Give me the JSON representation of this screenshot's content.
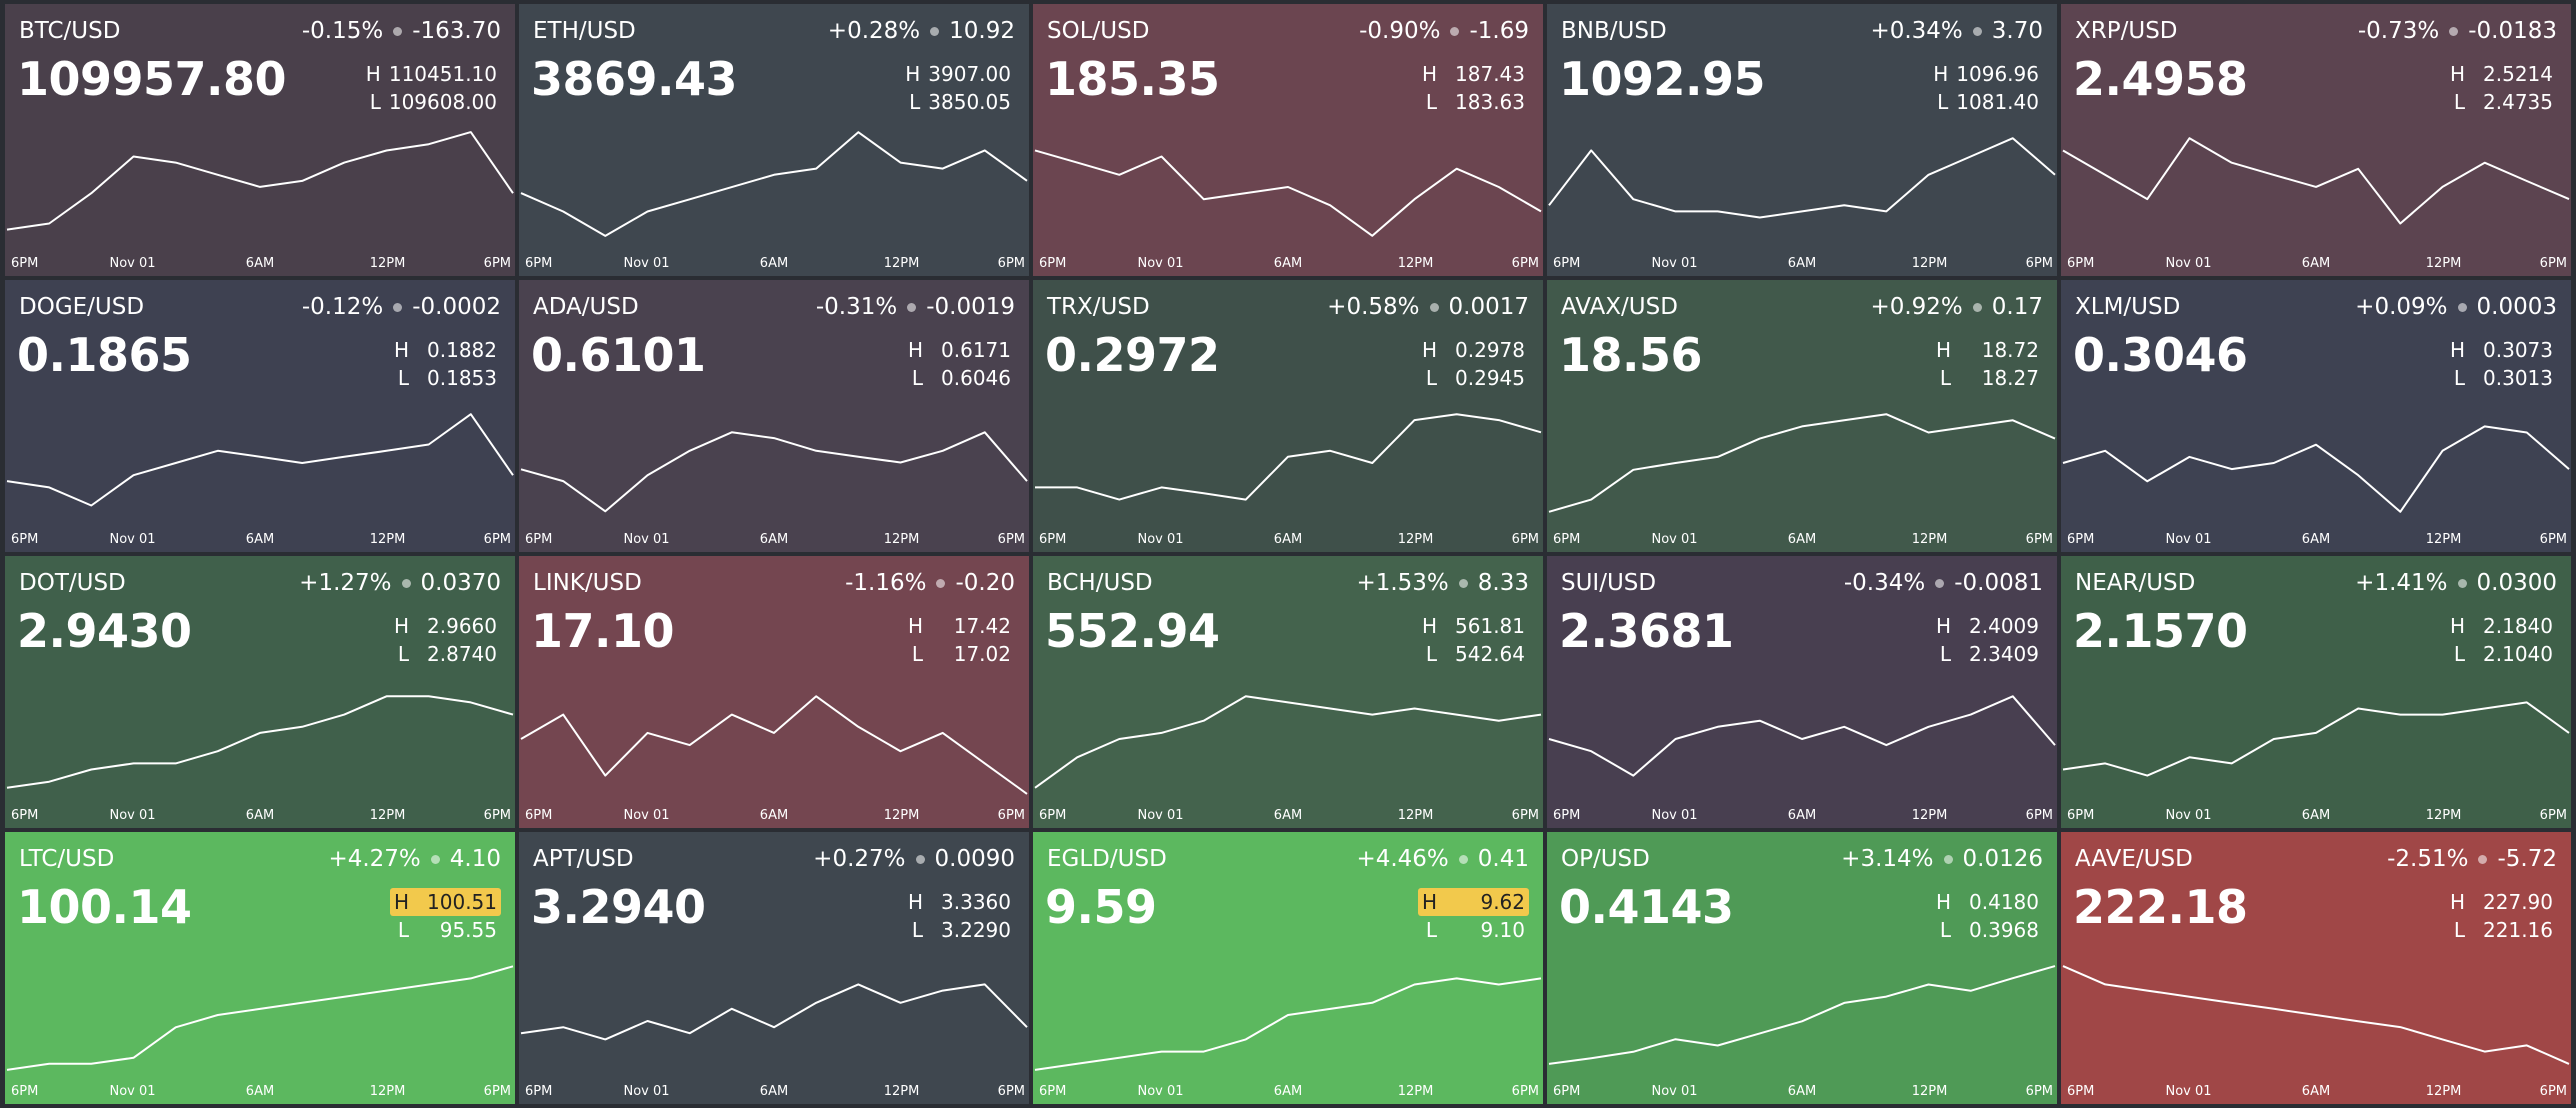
{
  "time_labels": [
    "6PM",
    "Nov 01",
    "6AM",
    "12PM",
    "6PM"
  ],
  "high_label": "H",
  "low_label": "L",
  "tiles": [
    {
      "pair": "BTC/USD",
      "change_pct": "-0.15%",
      "change": "-163.70",
      "price": "109957.80",
      "high": "110451.10",
      "low": "109608.00",
      "background": "#4a404b",
      "high_highlight": false,
      "sparkline": [
        109735,
        109777,
        109987,
        110240,
        110198,
        110114,
        110030,
        110072,
        110198,
        110282,
        110325,
        110409,
        109987
      ]
    },
    {
      "pair": "ETH/USD",
      "change_pct": "+0.28%",
      "change": "10.92",
      "price": "3869.43",
      "high": "3907.00",
      "low": "3850.05",
      "background": "#3f474f",
      "high_highlight": false,
      "sparkline": [
        3875.7,
        3867.1,
        3855.7,
        3867.1,
        3872.8,
        3878.5,
        3884.2,
        3887.1,
        3904.1,
        3889.9,
        3887.1,
        3895.6,
        3881.4
      ]
    },
    {
      "pair": "SOL/USD",
      "change_pct": "-0.90%",
      "change": "-1.69",
      "price": "185.35",
      "high": "187.43",
      "low": "183.63",
      "background": "#6b4550",
      "high_highlight": false,
      "sparkline": [
        186.67,
        186.29,
        185.91,
        186.48,
        185.15,
        185.34,
        185.53,
        184.96,
        184.01,
        185.15,
        186.1,
        185.53,
        184.77
      ]
    },
    {
      "pair": "BNB/USD",
      "change_pct": "+0.34%",
      "change": "3.70",
      "price": "1092.95",
      "high": "1096.96",
      "low": "1081.40",
      "background": "#3f474f",
      "high_highlight": false,
      "sparkline": [
        1086.85,
        1093.85,
        1087.62,
        1086.07,
        1086.07,
        1085.29,
        1086.07,
        1086.85,
        1086.07,
        1090.74,
        1093.07,
        1095.4,
        1090.74
      ]
    },
    {
      "pair": "XRP/USD",
      "change_pct": "-0.73%",
      "change": "-0.0183",
      "price": "2.4958",
      "high": "2.5214",
      "low": "2.4735",
      "background": "#5c4450",
      "high_highlight": false,
      "sparkline": [
        2.5118,
        2.5022,
        2.4927,
        2.5166,
        2.507,
        2.5022,
        2.4975,
        2.5046,
        2.4831,
        2.4975,
        2.507,
        2.4998,
        2.4927
      ]
    },
    {
      "pair": "DOGE/USD",
      "change_pct": "-0.12%",
      "change": "-0.0002",
      "price": "0.1865",
      "high": "0.1882",
      "low": "0.1853",
      "background": "#3e4151",
      "high_highlight": false,
      "sparkline": [
        0.18632,
        0.18617,
        0.18574,
        0.18646,
        0.18675,
        0.18704,
        0.1869,
        0.18675,
        0.1869,
        0.18704,
        0.18719,
        0.18791,
        0.18646
      ]
    },
    {
      "pair": "ADA/USD",
      "change_pct": "-0.31%",
      "change": "-0.0019",
      "price": "0.6101",
      "high": "0.6171",
      "low": "0.6046",
      "background": "#4a424f",
      "high_highlight": false,
      "sparkline": [
        0.6102,
        0.609,
        0.6059,
        0.6096,
        0.6121,
        0.614,
        0.6134,
        0.6121,
        0.6115,
        0.6109,
        0.6121,
        0.614,
        0.609
      ]
    },
    {
      "pair": "TRX/USD",
      "change_pct": "+0.58%",
      "change": "0.0017",
      "price": "0.2972",
      "high": "0.2978",
      "low": "0.2945",
      "background": "#3f504a",
      "high_highlight": false,
      "sparkline": [
        0.29549,
        0.29549,
        0.29516,
        0.29549,
        0.29533,
        0.29516,
        0.29632,
        0.29648,
        0.29615,
        0.29731,
        0.29747,
        0.29731,
        0.29698
      ]
    },
    {
      "pair": "AVAX/USD",
      "change_pct": "+0.92%",
      "change": "0.17",
      "price": "18.56",
      "high": "18.72",
      "low": "18.27",
      "background": "#41594b",
      "high_highlight": false,
      "sparkline": [
        18.315,
        18.36,
        18.47,
        18.495,
        18.5175,
        18.585,
        18.63,
        18.6525,
        18.675,
        18.6075,
        18.63,
        18.6525,
        18.585
      ]
    },
    {
      "pair": "XLM/USD",
      "change_pct": "+0.09%",
      "change": "0.0003",
      "price": "0.3046",
      "high": "0.3073",
      "low": "0.3013",
      "background": "#3e4252",
      "high_highlight": false,
      "sparkline": [
        0.3043,
        0.3049,
        0.3034,
        0.3046,
        0.304,
        0.3043,
        0.3052,
        0.3037,
        0.3019,
        0.3049,
        0.3061,
        0.3058,
        0.304
      ]
    },
    {
      "pair": "DOT/USD",
      "change_pct": "+1.27%",
      "change": "0.0370",
      "price": "2.9430",
      "high": "2.9660",
      "low": "2.8740",
      "background": "#40604b",
      "high_highlight": false,
      "sparkline": [
        2.8832,
        2.8878,
        2.897,
        2.9016,
        2.9016,
        2.9108,
        2.9246,
        2.9292,
        2.9384,
        2.9522,
        2.9522,
        2.9476,
        2.9384
      ]
    },
    {
      "pair": "LINK/USD",
      "change_pct": "-1.16%",
      "change": "-0.20",
      "price": "17.10",
      "high": "17.42",
      "low": "17.02",
      "background": "#744650",
      "high_highlight": false,
      "sparkline": [
        17.22,
        17.3,
        17.1,
        17.24,
        17.2,
        17.3,
        17.24,
        17.36,
        17.26,
        17.18,
        17.24,
        17.14,
        17.04
      ]
    },
    {
      "pair": "BCH/USD",
      "change_pct": "+1.53%",
      "change": "8.33",
      "price": "552.94",
      "high": "561.81",
      "low": "542.64",
      "background": "#44634d",
      "high_highlight": false,
      "sparkline": [
        544.56,
        549.35,
        552.23,
        553.18,
        555.1,
        558.93,
        557.98,
        557.02,
        556.06,
        557.02,
        556.06,
        555.1,
        556.06
      ]
    },
    {
      "pair": "SUI/USD",
      "change_pct": "-0.34%",
      "change": "-0.0081",
      "price": "2.3681",
      "high": "2.4009",
      "low": "2.3409",
      "background": "#483f50",
      "high_highlight": false,
      "sparkline": [
        2.3709,
        2.3649,
        2.3529,
        2.3709,
        2.3769,
        2.3799,
        2.3709,
        2.3769,
        2.3679,
        2.3769,
        2.3829,
        2.3919,
        2.3679
      ]
    },
    {
      "pair": "NEAR/USD",
      "change_pct": "+1.41%",
      "change": "0.0300",
      "price": "2.1570",
      "high": "2.1840",
      "low": "2.1040",
      "background": "#3f6049",
      "high_highlight": false,
      "sparkline": [
        2.124,
        2.128,
        2.12,
        2.132,
        2.128,
        2.144,
        2.148,
        2.164,
        2.16,
        2.16,
        2.164,
        2.168,
        2.148
      ]
    },
    {
      "pair": "LTC/USD",
      "change_pct": "+4.27%",
      "change": "4.10",
      "price": "100.14",
      "high": "100.51",
      "low": "95.55",
      "background": "#5cb85f",
      "high_highlight": true,
      "sparkline": [
        95.8,
        96.05,
        96.05,
        96.29,
        97.53,
        98.03,
        98.28,
        98.53,
        98.77,
        99.02,
        99.27,
        99.52,
        100.01
      ]
    },
    {
      "pair": "APT/USD",
      "change_pct": "+0.27%",
      "change": "0.0090",
      "price": "3.2940",
      "high": "3.3360",
      "low": "3.2290",
      "background": "#3f474f",
      "high_highlight": false,
      "sparkline": [
        3.2665,
        3.2718,
        3.2611,
        3.2772,
        3.2665,
        3.2879,
        3.2718,
        3.2932,
        3.3093,
        3.2932,
        3.3039,
        3.3093,
        3.2718
      ]
    },
    {
      "pair": "EGLD/USD",
      "change_pct": "+4.46%",
      "change": "0.41",
      "price": "9.59",
      "high": "9.62",
      "low": "9.10",
      "background": "#5cb85f",
      "high_highlight": true,
      "sparkline": [
        9.126,
        9.152,
        9.178,
        9.204,
        9.204,
        9.256,
        9.36,
        9.386,
        9.412,
        9.49,
        9.516,
        9.49,
        9.516
      ]
    },
    {
      "pair": "OP/USD",
      "change_pct": "+3.14%",
      "change": "0.0126",
      "price": "0.4143",
      "high": "0.4180",
      "low": "0.3968",
      "background": "#4f9a56",
      "high_highlight": false,
      "sparkline": [
        0.3989,
        0.3999,
        0.401,
        0.4032,
        0.4021,
        0.4042,
        0.4063,
        0.4095,
        0.4106,
        0.4127,
        0.4116,
        0.4138,
        0.4159
      ]
    },
    {
      "pair": "AAVE/USD",
      "change_pct": "-2.51%",
      "change": "-5.72",
      "price": "222.18",
      "high": "227.90",
      "low": "221.16",
      "background": "#a04747",
      "high_highlight": false,
      "sparkline": [
        227.23,
        226.22,
        225.88,
        225.54,
        225.2,
        224.87,
        224.53,
        224.19,
        223.86,
        223.18,
        222.51,
        222.85,
        221.83
      ]
    }
  ]
}
